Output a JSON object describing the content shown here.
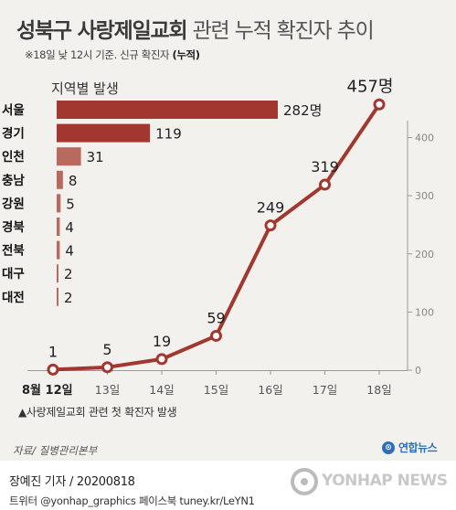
{
  "title": {
    "bold": "성북구 사랑제일교회",
    "light": "관련 누적 확진자 추이"
  },
  "subtitle": {
    "text": "※18일 낮 12시 기준. 신규 확진자",
    "bold": "(누적)"
  },
  "colors": {
    "accent": "#a2372f",
    "bar_light": "#b86a5e",
    "axis": "#999999",
    "tick_text": "#888888"
  },
  "chart_data": [
    {
      "type": "bar",
      "orientation": "horizontal",
      "title": "지역별 발생",
      "categories": [
        "서울",
        "경기",
        "인천",
        "충남",
        "강원",
        "경북",
        "전북",
        "대구",
        "대전"
      ],
      "values": [
        282,
        119,
        31,
        8,
        5,
        4,
        4,
        2,
        2
      ],
      "value_labels": [
        "282명",
        "119",
        "31",
        "8",
        "5",
        "4",
        "4",
        "2",
        "2"
      ]
    },
    {
      "type": "line",
      "x": [
        "8월 12일",
        "13일",
        "14일",
        "15일",
        "16일",
        "17일",
        "18일"
      ],
      "values": [
        1,
        5,
        19,
        59,
        249,
        319,
        457
      ],
      "value_labels": [
        "1",
        "5",
        "19",
        "59",
        "249",
        "319",
        "457명"
      ],
      "yticks": [
        0,
        100,
        200,
        300,
        400
      ],
      "ylim": [
        0,
        470
      ],
      "y_axis_side": "right",
      "grid": false
    }
  ],
  "footnote": "▲사랑제일교회 관련 첫 확진자 발생",
  "source": "자료/ 질병관리본부",
  "logo": {
    "mark": "⊙",
    "text": "연합뉴스"
  },
  "footer": {
    "author": "장예진 기자 / 20200818",
    "social": "트위터 @yonhap_graphics  페이스북 tuney.kr/LeYN1",
    "watermark": "YONHAP NEWS"
  }
}
